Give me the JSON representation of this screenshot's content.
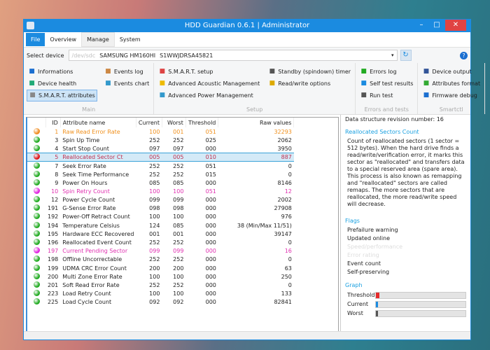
{
  "window": {
    "title": "HDD Guardian 0.6.1 | Administrator"
  },
  "menu": [
    "File",
    "Overview",
    "Manage",
    "System"
  ],
  "device": {
    "label": "Select device",
    "path": "/dev/sdc",
    "model": "SAMSUNG HM160HI",
    "serial": "S1WWJDRSA45821"
  },
  "ribbon": {
    "groups": [
      {
        "label": "Main",
        "columns": [
          [
            "Informations",
            "Device health",
            "S.M.A.R.T. attributes"
          ],
          [
            "Events log",
            "Events chart"
          ]
        ]
      },
      {
        "label": "Setup",
        "columns": [
          [
            "S.M.A.R.T. setup",
            "Advanced Acoustic Management",
            "Advanced Power Management"
          ],
          [
            "Standby (spindown) timer",
            "Read/write options"
          ]
        ]
      },
      {
        "label": "Errors and tests",
        "columns": [
          [
            "Errors log",
            "Self test results",
            "Run test"
          ]
        ]
      },
      {
        "label": "Smartctl",
        "columns": [
          [
            "Device output",
            "Attributes format",
            "Firmware debug"
          ]
        ]
      }
    ]
  },
  "table": {
    "headers": [
      "ID",
      "Attribute name",
      "Current",
      "Worst",
      "Threshold",
      "Raw values"
    ],
    "rows": [
      {
        "status": "#f08a1c",
        "color": "#f0901c",
        "id": "1",
        "name": "Raw Read Error Rate",
        "current": "100",
        "worst": "001",
        "threshold": "051",
        "raw": "32293"
      },
      {
        "status": "#1faa1f",
        "color": "#222",
        "id": "3",
        "name": "Spin Up Time",
        "current": "252",
        "worst": "252",
        "threshold": "025",
        "raw": "2062"
      },
      {
        "status": "#1faa1f",
        "color": "#222",
        "id": "4",
        "name": "Start Stop Count",
        "current": "097",
        "worst": "097",
        "threshold": "000",
        "raw": "3950"
      },
      {
        "status": "#e01010",
        "color": "#c03050",
        "id": "5",
        "name": "Reallocated Sector Ct",
        "current": "005",
        "worst": "005",
        "threshold": "010",
        "raw": "887",
        "selected": true
      },
      {
        "status": "#1faa1f",
        "color": "#222",
        "id": "7",
        "name": "Seek Error Rate",
        "current": "252",
        "worst": "252",
        "threshold": "051",
        "raw": "0"
      },
      {
        "status": "#1faa1f",
        "color": "#222",
        "id": "8",
        "name": "Seek Time Performance",
        "current": "252",
        "worst": "252",
        "threshold": "015",
        "raw": "0"
      },
      {
        "status": "#1faa1f",
        "color": "#222",
        "id": "9",
        "name": "Power On Hours",
        "current": "085",
        "worst": "085",
        "threshold": "000",
        "raw": "8146"
      },
      {
        "status": "#e020e0",
        "color": "#e030b0",
        "id": "10",
        "name": "Spin Retry Count",
        "current": "100",
        "worst": "100",
        "threshold": "051",
        "raw": "12"
      },
      {
        "status": "#1faa1f",
        "color": "#222",
        "id": "12",
        "name": "Power Cycle Count",
        "current": "099",
        "worst": "099",
        "threshold": "000",
        "raw": "2002"
      },
      {
        "status": "#1faa1f",
        "color": "#222",
        "id": "191",
        "name": "G-Sense Error Rate",
        "current": "098",
        "worst": "098",
        "threshold": "000",
        "raw": "27908"
      },
      {
        "status": "#1faa1f",
        "color": "#222",
        "id": "192",
        "name": "Power-Off Retract Count",
        "current": "100",
        "worst": "100",
        "threshold": "000",
        "raw": "976"
      },
      {
        "status": "#1faa1f",
        "color": "#222",
        "id": "194",
        "name": "Temperature Celsius",
        "current": "124",
        "worst": "085",
        "threshold": "000",
        "raw": "38 (Min/Max 11/51)"
      },
      {
        "status": "#1faa1f",
        "color": "#222",
        "id": "195",
        "name": "Hardware ECC Recovered",
        "current": "001",
        "worst": "001",
        "threshold": "000",
        "raw": "39147"
      },
      {
        "status": "#1faa1f",
        "color": "#222",
        "id": "196",
        "name": "Reallocated Event Count",
        "current": "252",
        "worst": "252",
        "threshold": "000",
        "raw": "0"
      },
      {
        "status": "#e020e0",
        "color": "#e030b0",
        "id": "197",
        "name": "Current Pending Sector",
        "current": "099",
        "worst": "099",
        "threshold": "000",
        "raw": "16"
      },
      {
        "status": "#1faa1f",
        "color": "#222",
        "id": "198",
        "name": "Offline Uncorrectable",
        "current": "252",
        "worst": "252",
        "threshold": "000",
        "raw": "0"
      },
      {
        "status": "#1faa1f",
        "color": "#222",
        "id": "199",
        "name": "UDMA CRC Error Count",
        "current": "200",
        "worst": "200",
        "threshold": "000",
        "raw": "63"
      },
      {
        "status": "#1faa1f",
        "color": "#222",
        "id": "200",
        "name": "Multi Zone Error Rate",
        "current": "100",
        "worst": "100",
        "threshold": "000",
        "raw": "250"
      },
      {
        "status": "#1faa1f",
        "color": "#222",
        "id": "201",
        "name": "Soft Read Error Rate",
        "current": "252",
        "worst": "252",
        "threshold": "000",
        "raw": "0"
      },
      {
        "status": "#1faa1f",
        "color": "#222",
        "id": "223",
        "name": "Load Retry Count",
        "current": "100",
        "worst": "100",
        "threshold": "000",
        "raw": "133"
      },
      {
        "status": "#1faa1f",
        "color": "#222",
        "id": "225",
        "name": "Load Cycle Count",
        "current": "092",
        "worst": "092",
        "threshold": "000",
        "raw": "82841"
      }
    ]
  },
  "details": {
    "revision": "Data structure revision number: 16",
    "title": "Reallocated Sectors Count",
    "description": "Count of reallocated sectors (1 sector = 512 bytes). When the hard drive finds a read/write/verification error, it marks this sector as \"reallocated\" and transfers data to a special reserved area (spare area). This process is also known as remapping and \"reallocated\" sectors are called remaps. The more sectors that are reallocated, the more read/write speed will decrease.",
    "flags_title": "Flags",
    "flags": [
      {
        "label": "Prefailure warning",
        "active": true
      },
      {
        "label": "Updated online",
        "active": true
      },
      {
        "label": "Speed/performance",
        "active": false
      },
      {
        "label": "Error rating",
        "active": false
      },
      {
        "label": "Event count",
        "active": true
      },
      {
        "label": "Self-preserving",
        "active": true
      }
    ],
    "graph_title": "Graph",
    "graph": [
      {
        "label": "Threshold",
        "value": 10,
        "max": 253,
        "color": "#e52b2b"
      },
      {
        "label": "Current",
        "value": 5,
        "max": 253,
        "color": "#1b8be0"
      },
      {
        "label": "Worst",
        "value": 5,
        "max": 253,
        "color": "#555555"
      }
    ]
  }
}
